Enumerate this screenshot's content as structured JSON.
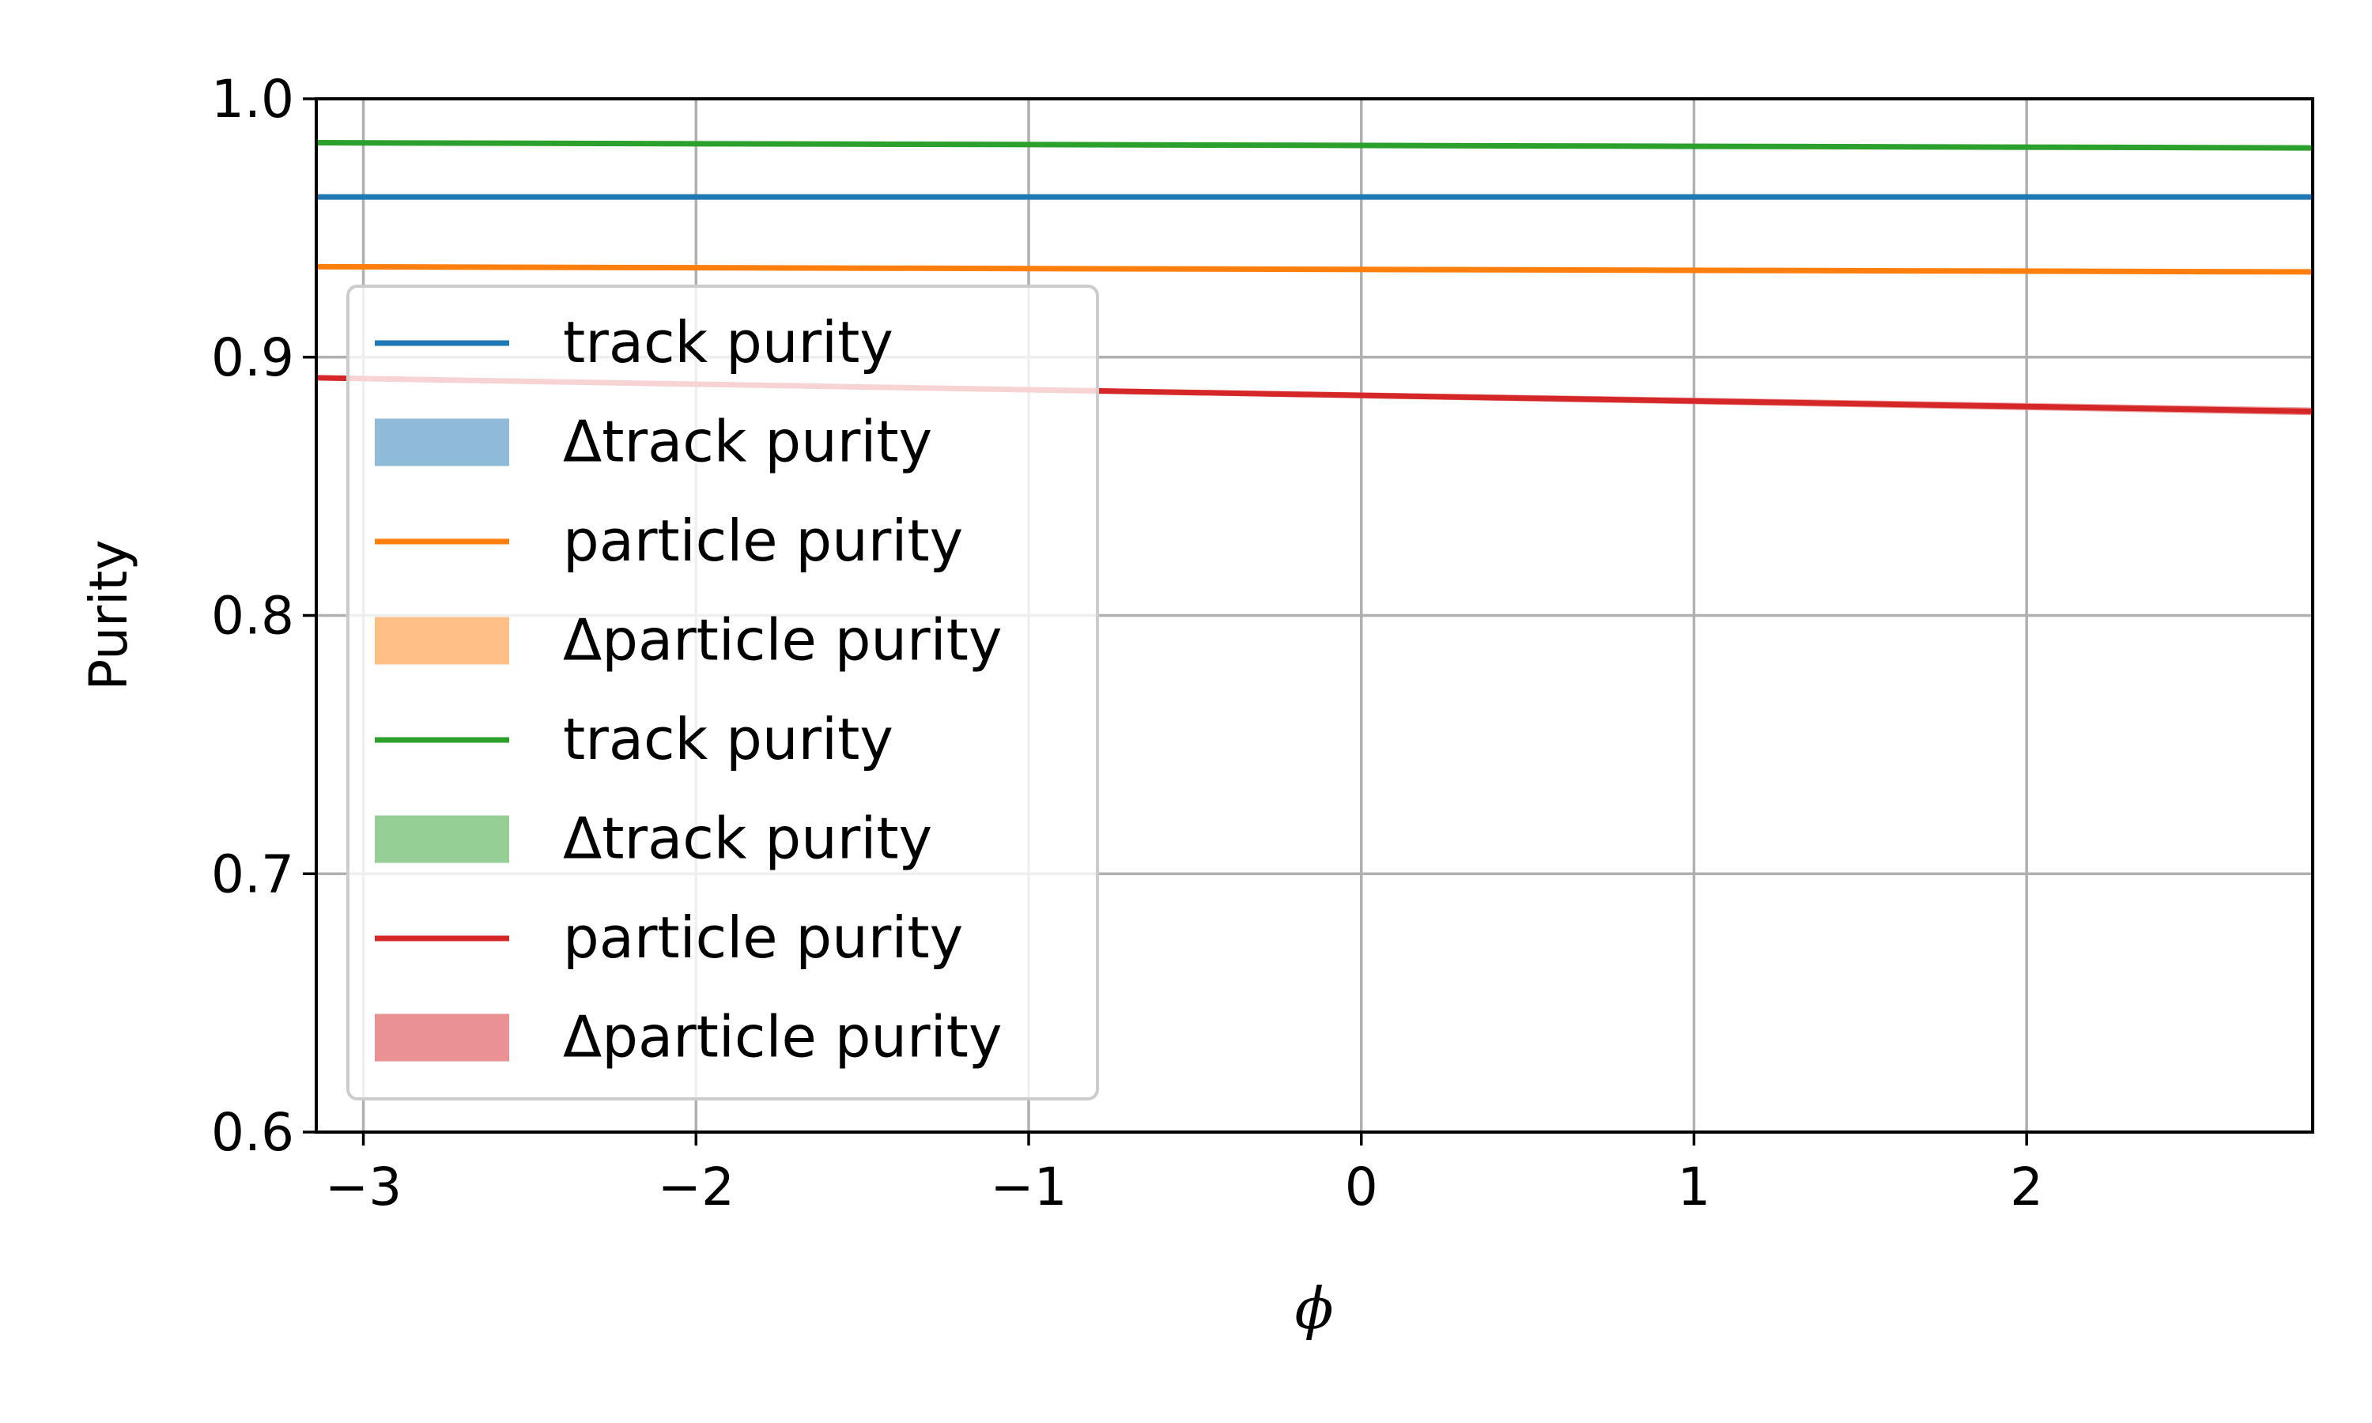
{
  "chart_data": {
    "type": "line",
    "xlabel": "ϕ",
    "ylabel": "Purity",
    "xlim": [
      -3.14159,
      2.86
    ],
    "ylim": [
      0.6,
      1.0
    ],
    "xticks": [
      -3,
      -2,
      -1,
      0,
      1,
      2
    ],
    "xtick_labels": [
      "−3",
      "−2",
      "−1",
      "0",
      "1",
      "2"
    ],
    "yticks": [
      0.6,
      0.7,
      0.8,
      0.9,
      1.0
    ],
    "ytick_labels": [
      "0.6",
      "0.7",
      "0.8",
      "0.9",
      "1.0"
    ],
    "grid": true,
    "legend_position": "center-left",
    "series": [
      {
        "name": "track purity",
        "band_name": "Δtrack purity",
        "color": "#1f77b4",
        "band_color": "#8fbbd9",
        "x": [
          -3.14159,
          2.86
        ],
        "y": [
          0.962,
          0.962
        ],
        "band": [
          0.0005,
          0.0005
        ]
      },
      {
        "name": "particle purity",
        "band_name": "Δparticle purity",
        "color": "#ff7f0e",
        "band_color": "#ffbf86",
        "x": [
          -3.14159,
          2.86
        ],
        "y": [
          0.935,
          0.933
        ],
        "band": [
          0.0006,
          0.0008
        ]
      },
      {
        "name": "track purity",
        "band_name": "Δtrack purity",
        "color": "#2ca02c",
        "band_color": "#95cf95",
        "x": [
          -3.14159,
          2.86
        ],
        "y": [
          0.983,
          0.981
        ],
        "band": [
          0.0005,
          0.0006
        ]
      },
      {
        "name": "particle purity",
        "band_name": "Δparticle purity",
        "color": "#d62728",
        "band_color": "#ea9293",
        "x": [
          -3.14159,
          2.86
        ],
        "y": [
          0.892,
          0.879
        ],
        "band": [
          0.0008,
          0.0015
        ]
      }
    ]
  }
}
